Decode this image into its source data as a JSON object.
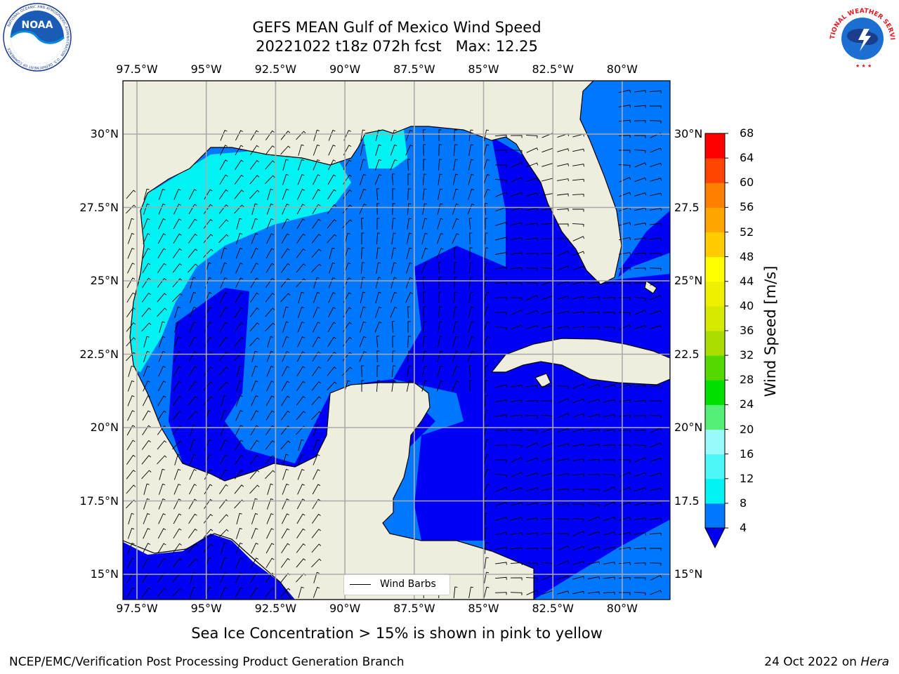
{
  "header": {
    "title_line1": "GEFS MEAN Gulf of Mexico Wind Speed",
    "title_line2": "20221022 t18z 072h fcst   Max: 12.25"
  },
  "logos": {
    "left": {
      "name": "NOAA",
      "text": "NOAA",
      "ring_text": "NATIONAL OCEANIC AND ATMOSPHERIC ADMINISTRATION · U.S. DEPARTMENT OF COMMERCE"
    },
    "right": {
      "name": "NWS",
      "ring_text": "NATIONAL WEATHER SERVICE"
    }
  },
  "map": {
    "extent": {
      "lon": [
        -98,
        -78
      ],
      "lat": [
        14,
        31.5
      ]
    },
    "gridlines": true,
    "lon_ticks": [
      {
        "value": -97.5,
        "label": "97.5°W"
      },
      {
        "value": -95,
        "label": "95°W"
      },
      {
        "value": -92.5,
        "label": "92.5°W"
      },
      {
        "value": -90,
        "label": "90°W"
      },
      {
        "value": -87.5,
        "label": "87.5°W"
      },
      {
        "value": -85,
        "label": "85°W"
      },
      {
        "value": -82.5,
        "label": "82.5°W"
      },
      {
        "value": -80,
        "label": "80°W"
      }
    ],
    "lat_ticks_left": [
      {
        "value": 30,
        "label": "30°N"
      },
      {
        "value": 27.5,
        "label": "27.5°N"
      },
      {
        "value": 25,
        "label": "25°N"
      },
      {
        "value": 22.5,
        "label": "22.5°N"
      },
      {
        "value": 20,
        "label": "20°N"
      },
      {
        "value": 17.5,
        "label": "17.5°N"
      },
      {
        "value": 15,
        "label": "15°N"
      }
    ],
    "lat_ticks_right": [
      {
        "value": 30,
        "label": "30°N"
      },
      {
        "value": 27.5,
        "label": "27.5"
      },
      {
        "value": 25,
        "label": "25°N"
      },
      {
        "value": 22.5,
        "label": "22.5"
      },
      {
        "value": 20,
        "label": "20°N"
      },
      {
        "value": 17.5,
        "label": "17.5"
      },
      {
        "value": 15,
        "label": "15°N"
      }
    ],
    "colors": {
      "land": "#efeede",
      "coast": "#000000",
      "grid": "#aaaaaa"
    },
    "legend_label": "Wind Barbs"
  },
  "colorbar": {
    "label": "Wind Speed [m/s]",
    "ticks": [
      "4",
      "8",
      "12",
      "16",
      "20",
      "24",
      "28",
      "32",
      "36",
      "40",
      "44",
      "48",
      "52",
      "56",
      "60",
      "64",
      "68"
    ],
    "colors": [
      "#0000f5",
      "#0077ff",
      "#00f2f2",
      "#4df7f7",
      "#99fafa",
      "#55ee77",
      "#00e000",
      "#54d800",
      "#aadc00",
      "#d6ea00",
      "#efef00",
      "#ffff00",
      "#ffcc00",
      "#ffa500",
      "#ff7f00",
      "#ff4500",
      "#ff0000"
    ],
    "extend": "min"
  },
  "caption": "Sea Ice Concentration > 15% is shown in pink to yellow",
  "footer": {
    "left": "NCEP/EMC/Verification Post Processing Product Generation Branch",
    "right_date": "24 Oct 2022 on ",
    "right_host": "Hera"
  }
}
